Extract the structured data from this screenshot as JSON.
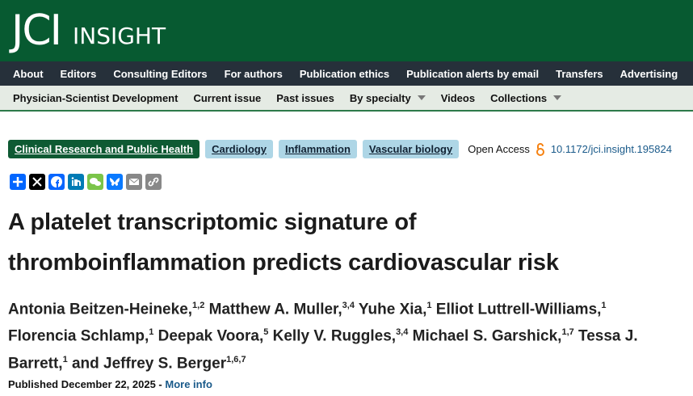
{
  "header": {
    "logo_main": "JCI",
    "logo_sub": "insight"
  },
  "nav_primary": [
    "About",
    "Editors",
    "Consulting Editors",
    "For authors",
    "Publication ethics",
    "Publication alerts by email",
    "Transfers",
    "Advertising"
  ],
  "nav_secondary": [
    "Physician-Scientist Development",
    "Current issue",
    "Past issues",
    "By specialty",
    "Videos",
    "Collections"
  ],
  "tags": [
    "Clinical Research and Public Health",
    "Cardiology",
    "Inflammation",
    "Vascular biology"
  ],
  "access": "Open Access",
  "doi": "10.1172/jci.insight.195824",
  "title_lines": [
    "A platelet transcriptomic signature of",
    "thromboinflammation predicts cardiovascular risk"
  ],
  "authors": [
    {
      "name": "Antonia Beitzen-Heineke,",
      "affil": "1,2"
    },
    {
      "name": "Matthew A. Muller,",
      "affil": "3,4"
    },
    {
      "name": "Yuhe Xia,",
      "affil": "1"
    },
    {
      "name": "Elliot Luttrell-Williams,",
      "affil": "1"
    },
    {
      "name": "Florencia Schlamp,",
      "affil": "1"
    },
    {
      "name": "Deepak Voora,",
      "affil": "5"
    },
    {
      "name": "Kelly V. Ruggles,",
      "affil": "3,4"
    },
    {
      "name": "Michael S. Garshick,",
      "affil": "1,7"
    },
    {
      "name": "Tessa J. Barrett,",
      "affil": "1"
    },
    {
      "name": "Jeffrey S. Berger",
      "affil": "1,6,7"
    }
  ],
  "author_conjunction": "and",
  "published": "Published December 22, 2025 -",
  "more_info": "More info"
}
